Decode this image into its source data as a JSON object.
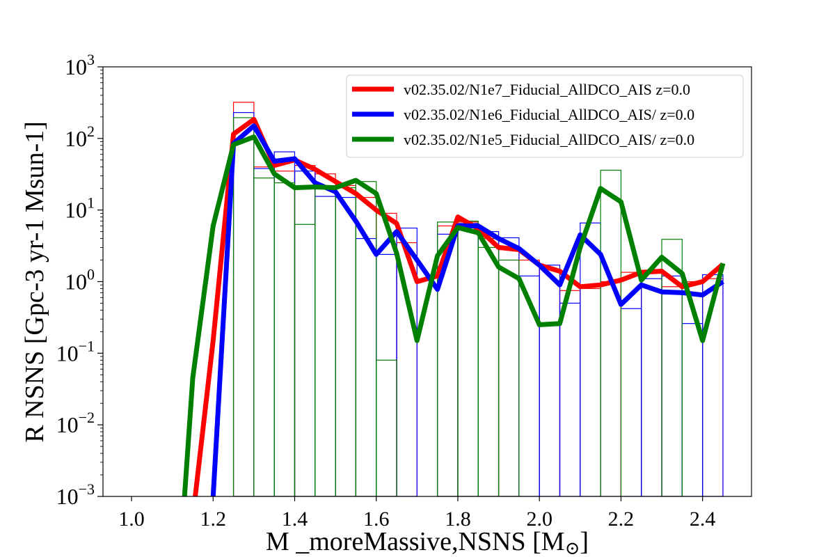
{
  "chart_data": {
    "type": "line",
    "xlabel_main": "M _moreMassive,NSNS [M",
    "xlabel_sub": "⊙",
    "xlabel_tail": "]",
    "ylabel": "R NSNS [Gpc-3 yr-1  Msun-1]",
    "xlim": [
      0.93,
      2.52
    ],
    "ylim": [
      0.001,
      1000
    ],
    "yscale": "log",
    "x_ticks": [
      1.0,
      1.2,
      1.4,
      1.6,
      1.8,
      2.0,
      2.2,
      2.4
    ],
    "x_tick_labels": [
      "1.0",
      "1.2",
      "1.4",
      "1.6",
      "1.8",
      "2.0",
      "2.2",
      "2.4"
    ],
    "y_ticks": [
      {
        "value": 0.001,
        "base": "10",
        "exp": "−3"
      },
      {
        "value": 0.01,
        "base": "10",
        "exp": "−2"
      },
      {
        "value": 0.1,
        "base": "10",
        "exp": "−1"
      },
      {
        "value": 1,
        "base": "10",
        "exp": "0"
      },
      {
        "value": 10,
        "base": "10",
        "exp": "1"
      },
      {
        "value": 100,
        "base": "10",
        "exp": "2"
      },
      {
        "value": 1000,
        "base": "10",
        "exp": "3"
      }
    ],
    "legend_position": "top-right",
    "grid": false,
    "bin_width": 0.05,
    "series": [
      {
        "name": "v02.35.02/N1e7_Fiducial_AllDCO_AIS z=0.0",
        "color": "#ff0000",
        "x": [
          1.15,
          1.2,
          1.25,
          1.3,
          1.35,
          1.4,
          1.45,
          1.5,
          1.55,
          1.6,
          1.65,
          1.7,
          1.75,
          1.8,
          1.85,
          1.9,
          1.95,
          2.0,
          2.05,
          2.1,
          2.15,
          2.2,
          2.25,
          2.3,
          2.35,
          2.4,
          2.45
        ],
        "y": [
          0.0005,
          0.15,
          115,
          185,
          42,
          50,
          37,
          25,
          17,
          10,
          6.5,
          1.0,
          1.2,
          8,
          5.5,
          3.0,
          2.8,
          1.7,
          1.4,
          0.85,
          0.9,
          1.05,
          1.35,
          1.4,
          0.85,
          1.0,
          1.75
        ],
        "hist_left": [
          1.25,
          1.3,
          1.35,
          1.4,
          1.45,
          1.5,
          1.55,
          1.6,
          1.65,
          1.7,
          1.75,
          1.8,
          1.85,
          1.9,
          1.95,
          2.0,
          2.05,
          2.1,
          2.15,
          2.2,
          2.25,
          2.3,
          2.35,
          2.4
        ],
        "hist_values": [
          320,
          40,
          35,
          42,
          32,
          22,
          15,
          9,
          3.5,
          0.001,
          6,
          6.8,
          4.0,
          2.8,
          2.0,
          1.5,
          0.75,
          0.8,
          1.0,
          1.35,
          1.4,
          0.85,
          1.0,
          1.1
        ]
      },
      {
        "name": "v02.35.02/N1e6_Fiducial_AllDCO_AIS/ z=0.0",
        "color": "#0000ff",
        "x": [
          1.2,
          1.25,
          1.3,
          1.35,
          1.4,
          1.45,
          1.5,
          1.55,
          1.6,
          1.65,
          1.7,
          1.75,
          1.8,
          1.85,
          1.9,
          1.95,
          2.0,
          2.05,
          2.1,
          2.15,
          2.2,
          2.25,
          2.3,
          2.35,
          2.4,
          2.45
        ],
        "y": [
          0.001,
          85,
          150,
          48,
          52,
          24,
          18,
          7,
          2.4,
          5.0,
          2.0,
          0.78,
          6.0,
          6.0,
          4.0,
          2.9,
          1.7,
          0.9,
          4.5,
          2.4,
          0.48,
          0.9,
          0.72,
          0.7,
          0.65,
          1.0
        ],
        "hist_left": [
          1.25,
          1.3,
          1.35,
          1.4,
          1.45,
          1.5,
          1.55,
          1.6,
          1.65,
          1.7,
          1.75,
          1.8,
          1.85,
          1.9,
          1.95,
          2.0,
          2.05,
          2.1,
          2.15,
          2.2,
          2.25,
          2.3,
          2.35,
          2.4
        ],
        "hist_values": [
          230,
          38,
          65,
          35,
          15.5,
          15,
          4.0,
          2.4,
          5.6,
          0.001,
          4.6,
          6.5,
          5.0,
          4.1,
          1.2,
          1.7,
          0.5,
          6.6,
          0.001,
          0.42,
          1.1,
          1.2,
          0.26,
          1.25
        ]
      },
      {
        "name": "v02.35.02/N1e5_Fiducial_AllDCO_AIS/ z=0.0",
        "color": "#008000",
        "x": [
          1.13,
          1.15,
          1.2,
          1.25,
          1.3,
          1.35,
          1.4,
          1.45,
          1.5,
          1.55,
          1.6,
          1.65,
          1.7,
          1.75,
          1.8,
          1.85,
          1.9,
          1.95,
          2.0,
          2.05,
          2.1,
          2.15,
          2.2,
          2.25,
          2.3,
          2.35,
          2.4,
          2.45
        ],
        "y": [
          0.001,
          0.045,
          6.0,
          82,
          105,
          32,
          20.5,
          21,
          20.5,
          26,
          17,
          2.5,
          0.15,
          2.3,
          5.7,
          4.8,
          1.6,
          1.1,
          0.25,
          0.26,
          3.0,
          20,
          13,
          1.05,
          2.2,
          1.3,
          0.15,
          1.8
        ],
        "hist_left": [
          1.25,
          1.3,
          1.35,
          1.4,
          1.45,
          1.5,
          1.55,
          1.6,
          1.65,
          1.7,
          1.75,
          1.8,
          1.85,
          1.9,
          1.95,
          2.0,
          2.05,
          2.1,
          2.15,
          2.2,
          2.25,
          2.3,
          2.35,
          2.4
        ],
        "hist_values": [
          195,
          28,
          24,
          6.3,
          20,
          20.5,
          25,
          0.08,
          0.001,
          0.001,
          6.8,
          7.0,
          3.0,
          2.0,
          0.001,
          0.001,
          0.001,
          0.001,
          36,
          0.001,
          0.001,
          3.9,
          0.001,
          0.001
        ]
      }
    ]
  }
}
